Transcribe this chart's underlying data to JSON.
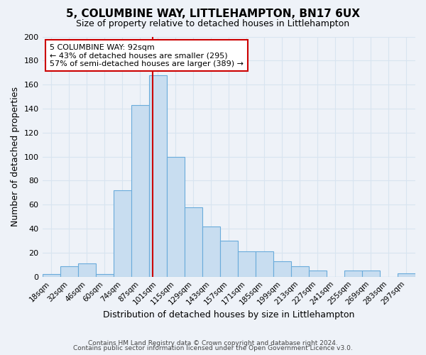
{
  "title": "5, COLUMBINE WAY, LITTLEHAMPTON, BN17 6UX",
  "subtitle": "Size of property relative to detached houses in Littlehampton",
  "xlabel": "Distribution of detached houses by size in Littlehampton",
  "ylabel": "Number of detached properties",
  "categories": [
    "18sqm",
    "32sqm",
    "46sqm",
    "60sqm",
    "74sqm",
    "87sqm",
    "101sqm",
    "115sqm",
    "129sqm",
    "143sqm",
    "157sqm",
    "171sqm",
    "185sqm",
    "199sqm",
    "213sqm",
    "227sqm",
    "241sqm",
    "255sqm",
    "269sqm",
    "283sqm",
    "297sqm"
  ],
  "bar_heights": [
    2,
    9,
    11,
    2,
    72,
    143,
    168,
    100,
    58,
    42,
    30,
    21,
    21,
    13,
    9,
    5,
    0,
    5,
    5,
    0,
    3
  ],
  "bar_color": "#c8ddf0",
  "bar_edge_color": "#6aabdb",
  "vline_position": 5.7,
  "vline_color": "#cc0000",
  "ylim": [
    0,
    200
  ],
  "yticks": [
    0,
    20,
    40,
    60,
    80,
    100,
    120,
    140,
    160,
    180,
    200
  ],
  "annotation_title": "5 COLUMBINE WAY: 92sqm",
  "annotation_line1": "← 43% of detached houses are smaller (295)",
  "annotation_line2": "57% of semi-detached houses are larger (389) →",
  "annotation_box_color": "#ffffff",
  "annotation_box_edge": "#cc0000",
  "footer_line1": "Contains HM Land Registry data © Crown copyright and database right 2024.",
  "footer_line2": "Contains public sector information licensed under the Open Government Licence v3.0.",
  "background_color": "#eef2f8",
  "grid_color": "#d8e4f0",
  "plot_bg_color": "#eef2f8"
}
